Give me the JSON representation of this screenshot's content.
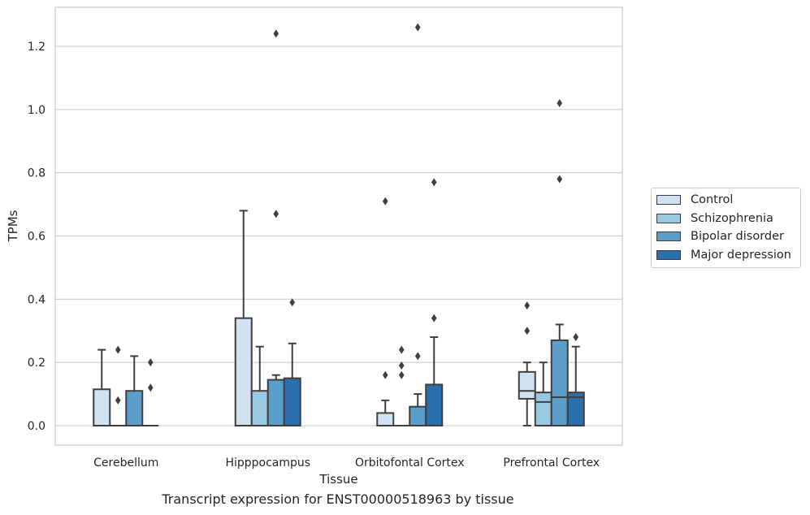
{
  "caption": "Transcript expression for ENST00000518963 by tissue",
  "chart_data": {
    "type": "box",
    "xlabel": "Tissue",
    "ylabel": "TPMs",
    "ylim": [
      -0.06,
      1.32
    ],
    "yticks": [
      "0.0",
      "0.2",
      "0.4",
      "0.6",
      "0.8",
      "1.0",
      "1.2"
    ],
    "grid": "horizontal",
    "legend_position": "right",
    "categories": [
      "Cerebellum",
      "Hipppocampus",
      "Orbitofontal Cortex",
      "Prefrontal Cortex"
    ],
    "series": [
      {
        "name": "Control",
        "color": "#d1e2f2",
        "boxes": [
          {
            "whislo": 0,
            "q1": 0,
            "med": 0,
            "q3": 0.115,
            "whishi": 0.24,
            "fliers": []
          },
          {
            "whislo": 0,
            "q1": 0,
            "med": 0,
            "q3": 0.34,
            "whishi": 0.68,
            "fliers": []
          },
          {
            "whislo": 0,
            "q1": 0,
            "med": 0,
            "q3": 0.04,
            "whishi": 0.08,
            "fliers": [
              0.16,
              0.71
            ]
          },
          {
            "whislo": 0,
            "q1": 0.085,
            "med": 0.11,
            "q3": 0.17,
            "whishi": 0.2,
            "fliers": [
              0.3,
              0.38
            ]
          }
        ]
      },
      {
        "name": "Schizophrenia",
        "color": "#9ac8e0",
        "boxes": [
          {
            "whislo": 0,
            "q1": 0,
            "med": 0,
            "q3": 0,
            "whishi": 0,
            "fliers": [
              0.08,
              0.24
            ]
          },
          {
            "whislo": 0,
            "q1": 0,
            "med": 0,
            "q3": 0.11,
            "whishi": 0.25,
            "fliers": []
          },
          {
            "whislo": 0,
            "q1": 0,
            "med": 0,
            "q3": 0,
            "whishi": 0,
            "fliers": [
              0.16,
              0.19,
              0.24
            ]
          },
          {
            "whislo": 0,
            "q1": 0,
            "med": 0.075,
            "q3": 0.105,
            "whishi": 0.2,
            "fliers": []
          }
        ]
      },
      {
        "name": "Bipolar disorder",
        "color": "#5a9ec9",
        "boxes": [
          {
            "whislo": 0,
            "q1": 0,
            "med": 0,
            "q3": 0.11,
            "whishi": 0.22,
            "fliers": []
          },
          {
            "whislo": 0,
            "q1": 0,
            "med": 0,
            "q3": 0.145,
            "whishi": 0.16,
            "fliers": [
              0.67,
              1.24
            ]
          },
          {
            "whislo": 0,
            "q1": 0,
            "med": 0,
            "q3": 0.06,
            "whishi": 0.1,
            "fliers": [
              0.22,
              1.26
            ]
          },
          {
            "whislo": 0,
            "q1": 0,
            "med": 0.09,
            "q3": 0.27,
            "whishi": 0.32,
            "fliers": [
              0.78,
              1.02
            ]
          }
        ]
      },
      {
        "name": "Major depression",
        "color": "#2c6fad",
        "boxes": [
          {
            "whislo": 0,
            "q1": 0,
            "med": 0,
            "q3": 0,
            "whishi": 0,
            "fliers": [
              0.12,
              0.2
            ]
          },
          {
            "whislo": 0,
            "q1": 0,
            "med": 0,
            "q3": 0.15,
            "whishi": 0.26,
            "fliers": [
              0.39
            ]
          },
          {
            "whislo": 0,
            "q1": 0,
            "med": 0,
            "q3": 0.13,
            "whishi": 0.28,
            "fliers": [
              0.34,
              0.77
            ]
          },
          {
            "whislo": 0,
            "q1": 0,
            "med": 0.09,
            "q3": 0.105,
            "whishi": 0.25,
            "fliers": [
              0.28
            ]
          }
        ]
      }
    ]
  }
}
